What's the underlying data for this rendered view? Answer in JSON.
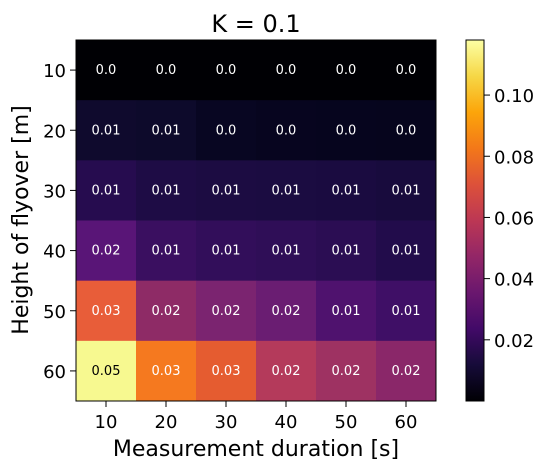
{
  "chart_data": {
    "type": "heatmap",
    "title": "K = 0.1",
    "xlabel": "Measurement duration [s]",
    "ylabel": "Height of flyover [m]",
    "x_categories": [
      "10",
      "20",
      "30",
      "40",
      "50",
      "60"
    ],
    "y_categories": [
      "10",
      "20",
      "30",
      "40",
      "50",
      "60"
    ],
    "values": [
      [
        0.0,
        0.0,
        0.0,
        0.0,
        0.0,
        0.0
      ],
      [
        0.01,
        0.01,
        0.0,
        0.0,
        0.0,
        0.0
      ],
      [
        0.01,
        0.01,
        0.01,
        0.01,
        0.01,
        0.01
      ],
      [
        0.02,
        0.01,
        0.01,
        0.01,
        0.01,
        0.01
      ],
      [
        0.03,
        0.02,
        0.02,
        0.02,
        0.01,
        0.01
      ],
      [
        0.05,
        0.03,
        0.03,
        0.02,
        0.02,
        0.02
      ]
    ],
    "cell_labels": [
      [
        "0.0",
        "0.0",
        "0.0",
        "0.0",
        "0.0",
        "0.0"
      ],
      [
        "0.01",
        "0.01",
        "0.0",
        "0.0",
        "0.0",
        "0.0"
      ],
      [
        "0.01",
        "0.01",
        "0.01",
        "0.01",
        "0.01",
        "0.01"
      ],
      [
        "0.02",
        "0.01",
        "0.01",
        "0.01",
        "0.01",
        "0.01"
      ],
      [
        "0.03",
        "0.02",
        "0.02",
        "0.02",
        "0.01",
        "0.01"
      ],
      [
        "0.05",
        "0.03",
        "0.03",
        "0.02",
        "0.02",
        "0.02"
      ]
    ],
    "cell_colors": [
      [
        "#000004",
        "#000004",
        "#000004",
        "#000004",
        "#000004",
        "#000004"
      ],
      [
        "#0f0a2d",
        "#0d0a2b",
        "#080622",
        "#07051f",
        "#06051e",
        "#06051d"
      ],
      [
        "#260c4f",
        "#1e0c45",
        "#1c0c42",
        "#1b0c41",
        "#1a0b40",
        "#180b3d"
      ],
      [
        "#591577",
        "#3a0f60",
        "#320e5a",
        "#2f0e57",
        "#2b0d53",
        "#220c4b"
      ],
      [
        "#e85d39",
        "#8e2b66",
        "#7b2470",
        "#6a1d72",
        "#4f126e",
        "#3f0f66"
      ],
      [
        "#f7f990",
        "#f5791f",
        "#e55c30",
        "#b43a5b",
        "#9e3262",
        "#8a2769"
      ]
    ],
    "colorbar": {
      "min": 0.0,
      "max": 0.118,
      "ticks": [
        0.02,
        0.04,
        0.06,
        0.08,
        0.1
      ],
      "tick_labels": [
        "0.02",
        "0.04",
        "0.06",
        "0.08",
        "0.10"
      ],
      "colormap": "inferno"
    }
  }
}
